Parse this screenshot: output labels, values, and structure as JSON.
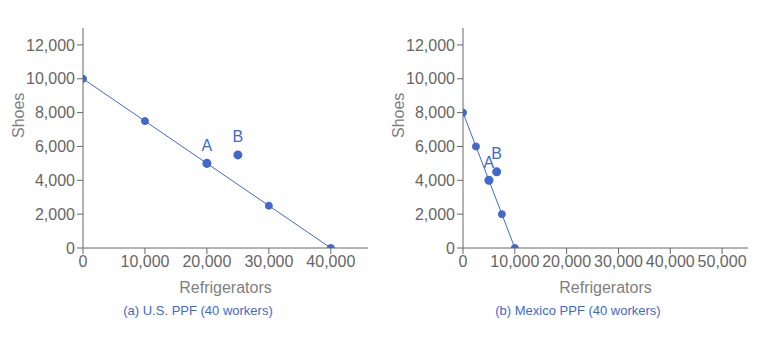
{
  "chart_data": [
    {
      "type": "line",
      "title": "(a) U.S. PPF (40 workers)",
      "x_label": "Refrigerators",
      "y_label": "Shoes",
      "x": [
        0,
        10000,
        20000,
        30000,
        40000
      ],
      "values": [
        10000,
        7500,
        5000,
        2500,
        0
      ],
      "color": "#4169CD",
      "marker": "o",
      "line_style": "solid",
      "annotations": [
        {
          "text": "A",
          "x": 20000,
          "y": 5000
        },
        {
          "text": "B",
          "x": 25000,
          "y": 5500
        }
      ],
      "xlim": [
        0,
        46000
      ],
      "ylim": [
        0,
        13000
      ],
      "xticks": [
        0,
        {
          "value": 10000,
          "label": "10,000"
        },
        {
          "value": 20000,
          "label": "20,000"
        },
        {
          "value": 30000,
          "label": "30,000"
        },
        {
          "value": 40000,
          "label": "40,000"
        }
      ],
      "yticks": [
        0,
        {
          "value": 2000,
          "label": "2,000"
        },
        {
          "value": 4000,
          "label": "4,000"
        },
        {
          "value": 6000,
          "label": "6,000"
        },
        {
          "value": 8000,
          "label": "8,000"
        },
        {
          "value": 10000,
          "label": "10,000"
        },
        {
          "value": 12000,
          "label": "12,000"
        }
      ],
      "grid": false
    },
    {
      "type": "line",
      "title": "(b) Mexico PPF (40 workers)",
      "x_label": "Refrigerators",
      "y_label": "Shoes",
      "x": [
        0,
        2500,
        5000,
        7500,
        10000
      ],
      "values": [
        8000,
        6000,
        4000,
        2000,
        0
      ],
      "color": "#4169CD",
      "marker": "o",
      "line_style": "solid",
      "annotations": [
        {
          "text": "A",
          "x": 5000,
          "y": 4000
        },
        {
          "text": "B",
          "x": 6500,
          "y": 4500
        }
      ],
      "xlim": [
        0,
        55000
      ],
      "ylim": [
        0,
        13000
      ],
      "xticks": [
        0,
        {
          "value": 10000,
          "label": "10,000"
        },
        {
          "value": 20000,
          "label": "20,000"
        },
        {
          "value": 30000,
          "label": "30,000"
        },
        {
          "value": 40000,
          "label": "40,000"
        },
        {
          "value": 50000,
          "label": "50,000"
        }
      ],
      "yticks": [
        0,
        {
          "value": 2000,
          "label": "2,000"
        },
        {
          "value": 4000,
          "label": "4,000"
        },
        {
          "value": 6000,
          "label": "6,000"
        },
        {
          "value": 8000,
          "label": "8,000"
        },
        {
          "value": 10000,
          "label": "10,000"
        },
        {
          "value": 12000,
          "label": "12,000"
        }
      ],
      "grid": false
    }
  ]
}
